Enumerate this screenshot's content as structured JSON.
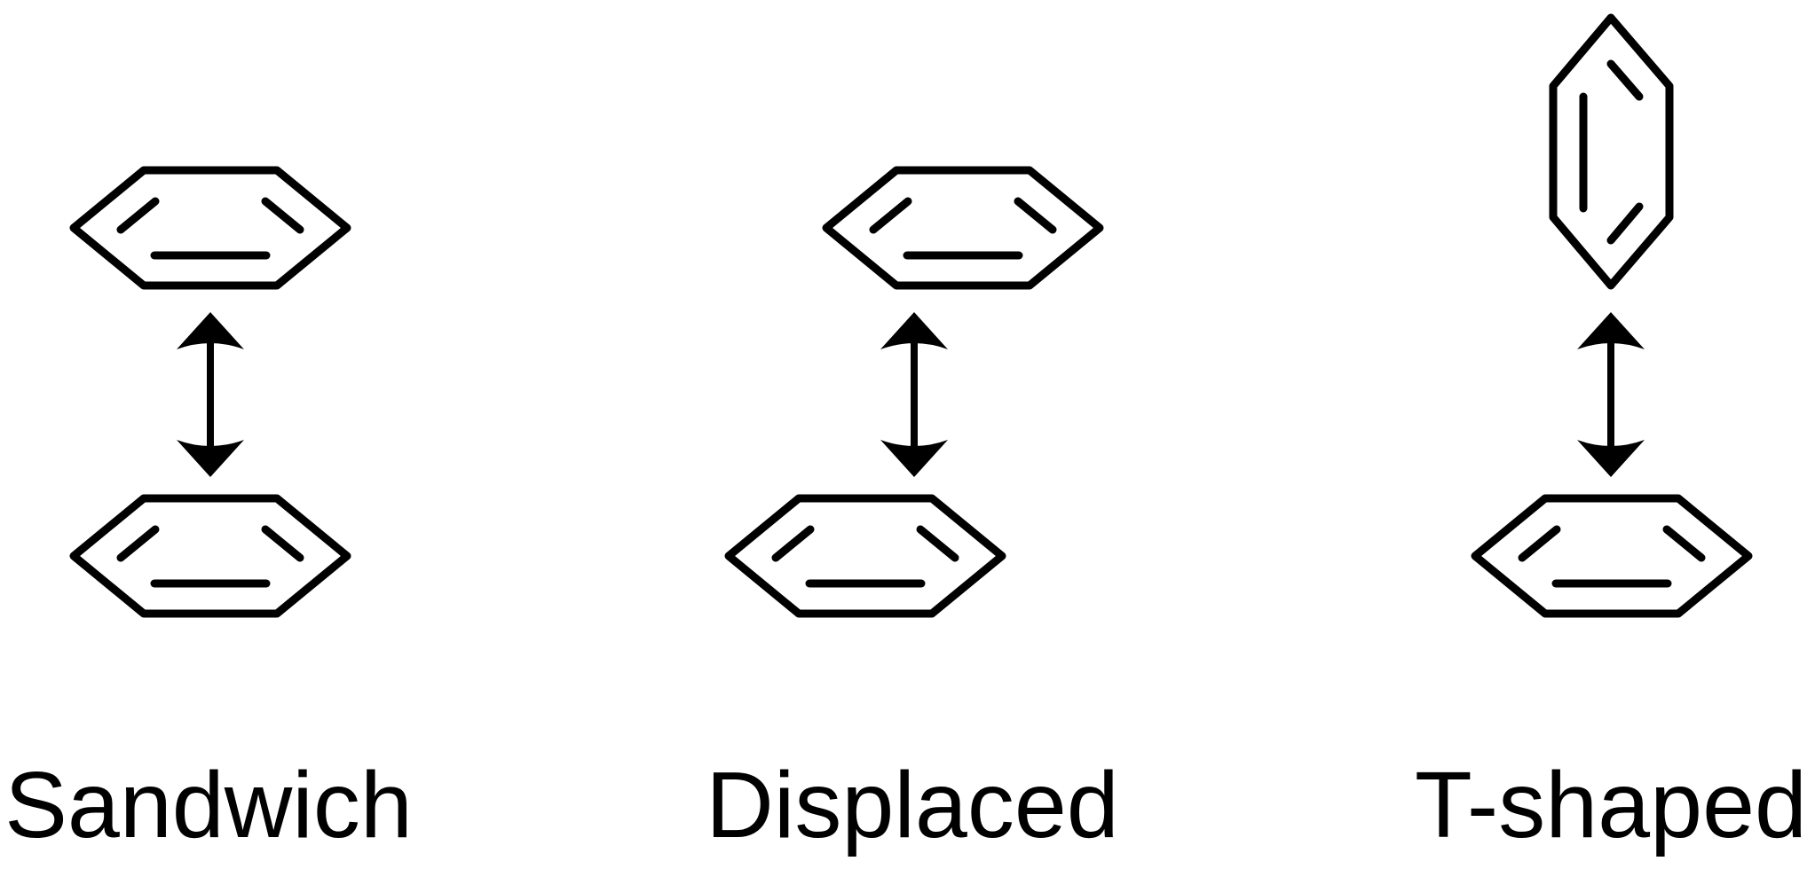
{
  "figure": {
    "colors": {
      "ink": "#000000",
      "background": "#ffffff"
    },
    "panels": [
      {
        "id": "sandwich",
        "label": "Sandwich",
        "top_ring": "horizontal",
        "bottom_ring": "horizontal"
      },
      {
        "id": "displaced",
        "label": "Displaced",
        "top_ring": "horizontal",
        "bottom_ring": "horizontal"
      },
      {
        "id": "t-shaped",
        "label": "T-shaped",
        "top_ring": "vertical",
        "bottom_ring": "horizontal"
      }
    ]
  }
}
